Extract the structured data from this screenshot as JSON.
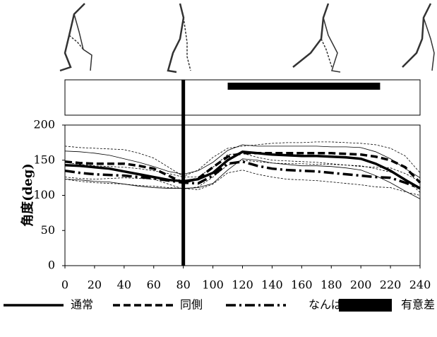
{
  "chart_data": {
    "type": "line",
    "y_label": "角度(deg)",
    "x": [
      0,
      10,
      20,
      30,
      40,
      50,
      60,
      70,
      80,
      90,
      100,
      110,
      120,
      130,
      140,
      150,
      160,
      170,
      180,
      190,
      200,
      210,
      220,
      230,
      240
    ],
    "series": [
      {
        "name": "通常",
        "color": "#000000",
        "style": "solid",
        "values": [
          143,
          142,
          140,
          138,
          134,
          130,
          126,
          122,
          120,
          123,
          132,
          150,
          162,
          160,
          158,
          157,
          156,
          156,
          155,
          154,
          152,
          145,
          135,
          122,
          110
        ],
        "sd": [
          20,
          20,
          20,
          19,
          18,
          17,
          15,
          12,
          10,
          12,
          15,
          14,
          10,
          10,
          12,
          13,
          14,
          14,
          14,
          15,
          16,
          17,
          17,
          16,
          15
        ]
      },
      {
        "name": "同側",
        "color": "#000000",
        "style": "dashed",
        "values": [
          148,
          146,
          145,
          145,
          145,
          142,
          138,
          128,
          118,
          124,
          140,
          155,
          160,
          160,
          160,
          160,
          160,
          160,
          160,
          159,
          158,
          155,
          150,
          140,
          118
        ],
        "sd": [
          22,
          22,
          22,
          21,
          20,
          18,
          15,
          12,
          9,
          12,
          14,
          12,
          10,
          12,
          14,
          15,
          15,
          16,
          16,
          16,
          16,
          17,
          17,
          16,
          14
        ]
      },
      {
        "name": "なんば",
        "color": "#000000",
        "style": "dashdot",
        "values": [
          135,
          132,
          130,
          129,
          128,
          126,
          124,
          121,
          118,
          117,
          128,
          145,
          148,
          142,
          138,
          136,
          135,
          134,
          132,
          130,
          128,
          126,
          125,
          118,
          110
        ],
        "sd": [
          12,
          12,
          12,
          12,
          12,
          12,
          11,
          10,
          8,
          9,
          12,
          13,
          12,
          12,
          12,
          13,
          13,
          13,
          13,
          13,
          13,
          14,
          14,
          13,
          10
        ]
      }
    ],
    "significance": {
      "label": "有意差",
      "color": "#000000",
      "xrange": [
        110,
        213
      ]
    },
    "marker_x": 80,
    "xlim": [
      0,
      240
    ],
    "xticks": [
      0,
      20,
      40,
      60,
      80,
      100,
      120,
      140,
      160,
      180,
      200,
      220,
      240
    ],
    "ylim": [
      0,
      200
    ],
    "yticks": [
      0,
      50,
      100,
      150,
      200
    ]
  }
}
